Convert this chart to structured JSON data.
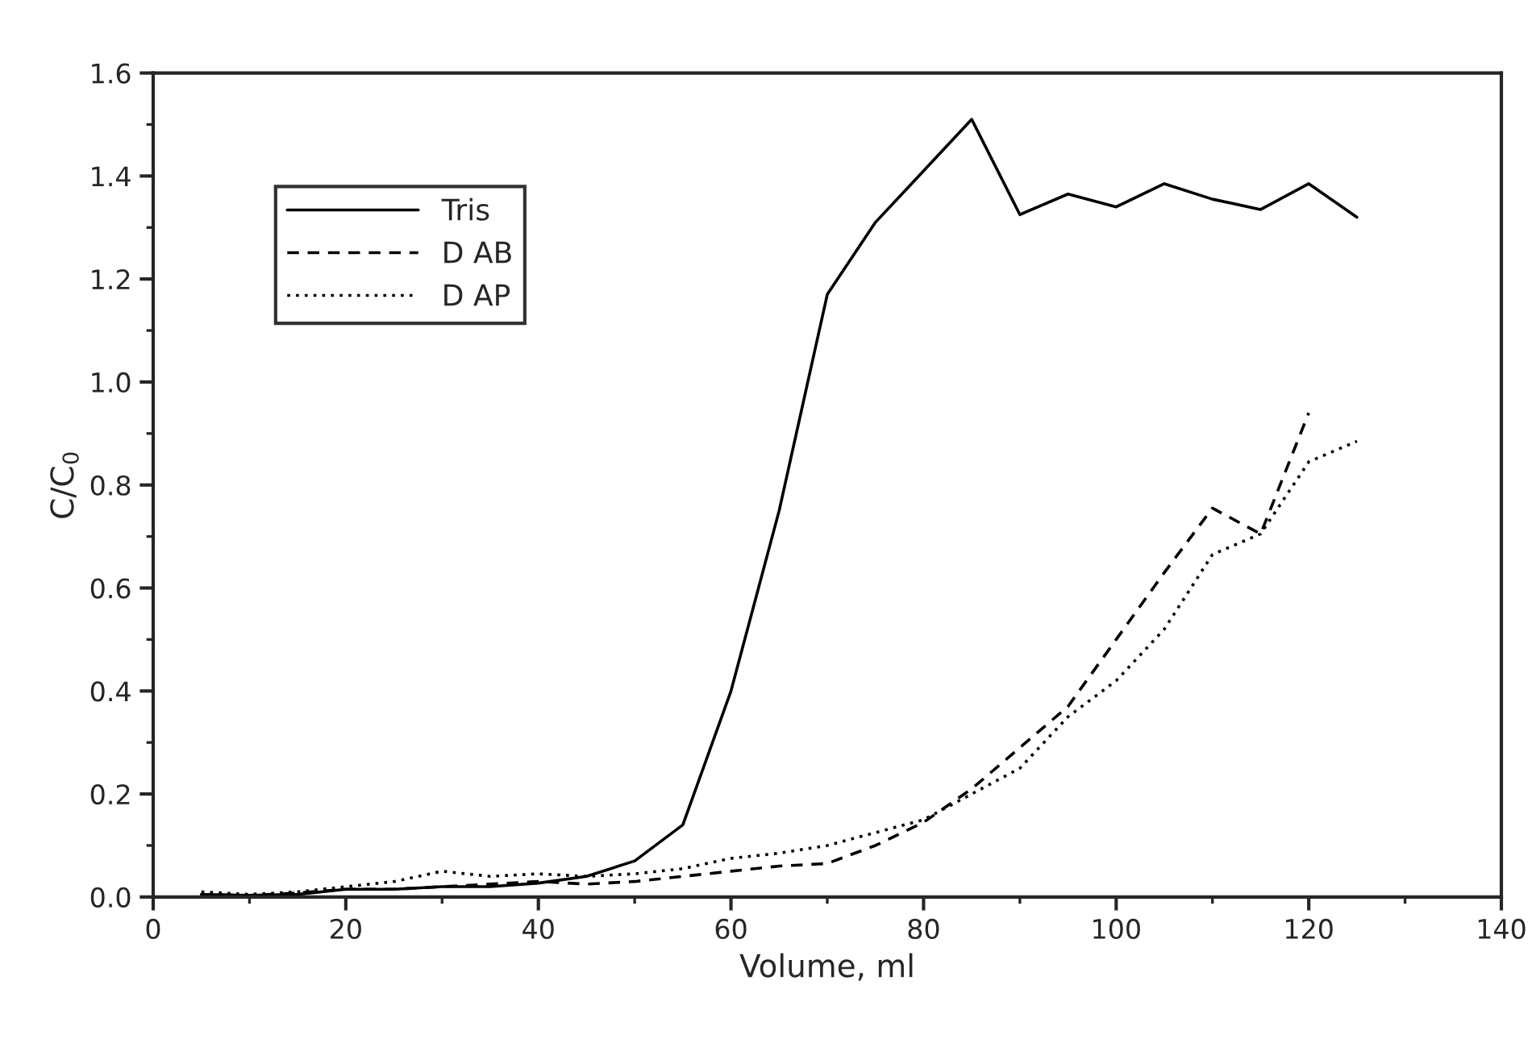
{
  "chart_data": {
    "type": "line",
    "xlabel": "Volume, ml",
    "ylabel": "C/C$_{0}$",
    "xlim": [
      0,
      140
    ],
    "xticks": [
      0,
      20,
      40,
      60,
      80,
      100,
      120,
      140
    ],
    "ylim": [
      0,
      1.6
    ],
    "yticks": [
      {
        "value": 0,
        "label": "0.0"
      },
      0.2,
      0.4,
      0.6,
      0.8,
      {
        "value": 1,
        "label": "1.0"
      },
      1.2,
      1.4,
      1.6
    ],
    "grid": false,
    "legend": "top left",
    "marker": "none",
    "series": [
      {
        "name": "Tris",
        "color": "#000000",
        "line_style": "solid",
        "x": [
          5,
          10,
          15,
          20,
          25,
          30,
          35,
          40,
          45,
          50,
          55,
          60,
          65,
          70,
          75,
          80,
          85,
          90,
          95,
          100,
          105,
          110,
          115,
          120,
          125
        ],
        "values": [
          0.005,
          0.003,
          0.005,
          0.015,
          0.015,
          0.02,
          0.02,
          0.027,
          0.04,
          0.07,
          0.14,
          0.4,
          0.75,
          1.17,
          1.31,
          1.41,
          1.51,
          1.325,
          1.365,
          1.34,
          1.385,
          1.355,
          1.335,
          1.385,
          1.32
        ]
      },
      {
        "name": "D AB",
        "color": "#000000",
        "line_style": "dashed",
        "x": [
          5,
          10,
          15,
          20,
          25,
          30,
          35,
          40,
          45,
          50,
          55,
          60,
          65,
          70,
          75,
          80,
          85,
          90,
          95,
          100,
          105,
          110,
          115,
          120
        ],
        "values": [
          0.005,
          0.003,
          0.008,
          0.015,
          0.015,
          0.02,
          0.025,
          0.03,
          0.025,
          0.03,
          0.04,
          0.05,
          0.06,
          0.065,
          0.1,
          0.145,
          0.21,
          0.29,
          0.37,
          0.5,
          0.63,
          0.755,
          0.705,
          0.94
        ]
      },
      {
        "name": "D AP",
        "color": "#000000",
        "line_style": "dotted",
        "x": [
          5,
          10,
          15,
          20,
          25,
          30,
          35,
          40,
          45,
          50,
          55,
          60,
          65,
          70,
          75,
          80,
          85,
          90,
          95,
          100,
          105,
          110,
          115,
          120,
          125
        ],
        "values": [
          0.01,
          0.005,
          0.01,
          0.02,
          0.03,
          0.05,
          0.04,
          0.045,
          0.04,
          0.045,
          0.055,
          0.075,
          0.085,
          0.1,
          0.125,
          0.15,
          0.2,
          0.25,
          0.35,
          0.42,
          0.52,
          0.665,
          0.705,
          0.845,
          0.885
        ]
      }
    ]
  }
}
